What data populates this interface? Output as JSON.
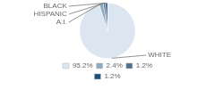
{
  "chart_data": {
    "type": "pie",
    "categories": [
      "WHITE",
      "A.I.",
      "HISPANIC",
      "BLACK"
    ],
    "values": [
      95.2,
      2.4,
      1.2,
      1.2
    ],
    "value_labels": [
      "95.2%",
      "2.4%",
      "1.2%",
      "1.2%"
    ],
    "colors": [
      "#dce6f1",
      "#8eaabf",
      "#4d7090",
      "#1f4e79"
    ],
    "legend": "bottom"
  }
}
